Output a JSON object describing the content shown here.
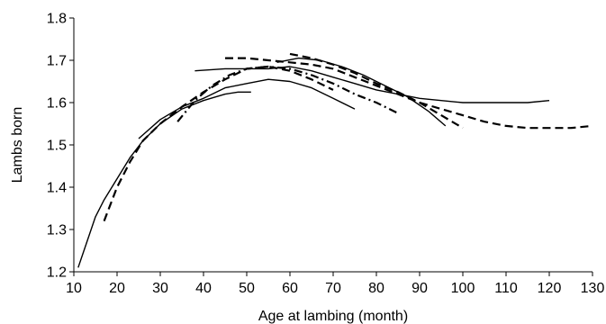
{
  "chart_data": {
    "type": "line",
    "title": "",
    "xlabel": "Age at lambing (month)",
    "ylabel": "Lambs born",
    "xlim": [
      10,
      130
    ],
    "ylim": [
      1.2,
      1.8
    ],
    "x_ticks": [
      10,
      20,
      30,
      40,
      50,
      60,
      70,
      80,
      90,
      100,
      110,
      120,
      130
    ],
    "y_ticks": [
      1.2,
      1.3,
      1.4,
      1.5,
      1.6,
      1.7,
      1.8
    ],
    "grid": false,
    "legend": "none",
    "series": [
      {
        "style": "solid",
        "color": "#000000",
        "x": [
          11,
          13,
          15,
          17,
          20,
          23,
          26,
          30,
          35,
          40,
          45,
          48,
          51
        ],
        "y": [
          1.21,
          1.27,
          1.33,
          1.37,
          1.42,
          1.47,
          1.51,
          1.55,
          1.585,
          1.605,
          1.62,
          1.625,
          1.625
        ]
      },
      {
        "style": "dashed",
        "color": "#000000",
        "x": [
          17,
          20,
          23,
          26,
          30,
          35,
          40,
          45,
          50,
          55,
          60,
          65,
          70
        ],
        "y": [
          1.32,
          1.4,
          1.46,
          1.51,
          1.55,
          1.59,
          1.625,
          1.655,
          1.68,
          1.685,
          1.675,
          1.655,
          1.63
        ]
      },
      {
        "style": "solid",
        "color": "#000000",
        "x": [
          25,
          30,
          35,
          40,
          45,
          50,
          55,
          60,
          65,
          70,
          75
        ],
        "y": [
          1.515,
          1.56,
          1.59,
          1.61,
          1.635,
          1.645,
          1.655,
          1.65,
          1.635,
          1.61,
          1.585
        ]
      },
      {
        "style": "dash-dot",
        "color": "#000000",
        "x": [
          34,
          38,
          42,
          46,
          50,
          55,
          60,
          65,
          70,
          75,
          80,
          85
        ],
        "y": [
          1.555,
          1.605,
          1.64,
          1.665,
          1.68,
          1.685,
          1.68,
          1.665,
          1.645,
          1.62,
          1.6,
          1.575
        ]
      },
      {
        "style": "solid",
        "color": "#000000",
        "x": [
          38,
          45,
          50,
          55,
          60,
          65,
          70,
          75,
          80,
          85,
          90,
          95,
          100,
          105,
          110,
          115,
          120
        ],
        "y": [
          1.675,
          1.68,
          1.68,
          1.68,
          1.685,
          1.675,
          1.66,
          1.645,
          1.63,
          1.62,
          1.61,
          1.605,
          1.6,
          1.6,
          1.6,
          1.6,
          1.605
        ]
      },
      {
        "style": "dashed",
        "color": "#000000",
        "x": [
          45,
          50,
          55,
          60,
          65,
          70,
          75,
          80,
          85,
          90,
          95,
          100,
          105,
          110,
          115,
          120,
          125,
          130
        ],
        "y": [
          1.705,
          1.705,
          1.7,
          1.695,
          1.69,
          1.68,
          1.66,
          1.64,
          1.62,
          1.6,
          1.585,
          1.57,
          1.555,
          1.545,
          1.54,
          1.54,
          1.54,
          1.545
        ]
      },
      {
        "style": "solid",
        "color": "#000000",
        "x": [
          57,
          62,
          67,
          72,
          77,
          82,
          87,
          92,
          96
        ],
        "y": [
          1.695,
          1.705,
          1.7,
          1.685,
          1.665,
          1.64,
          1.615,
          1.58,
          1.545
        ]
      },
      {
        "style": "dashed",
        "color": "#000000",
        "x": [
          60,
          65,
          70,
          75,
          80,
          85,
          90,
          95,
          100
        ],
        "y": [
          1.715,
          1.705,
          1.69,
          1.67,
          1.645,
          1.625,
          1.6,
          1.57,
          1.54
        ]
      }
    ]
  }
}
